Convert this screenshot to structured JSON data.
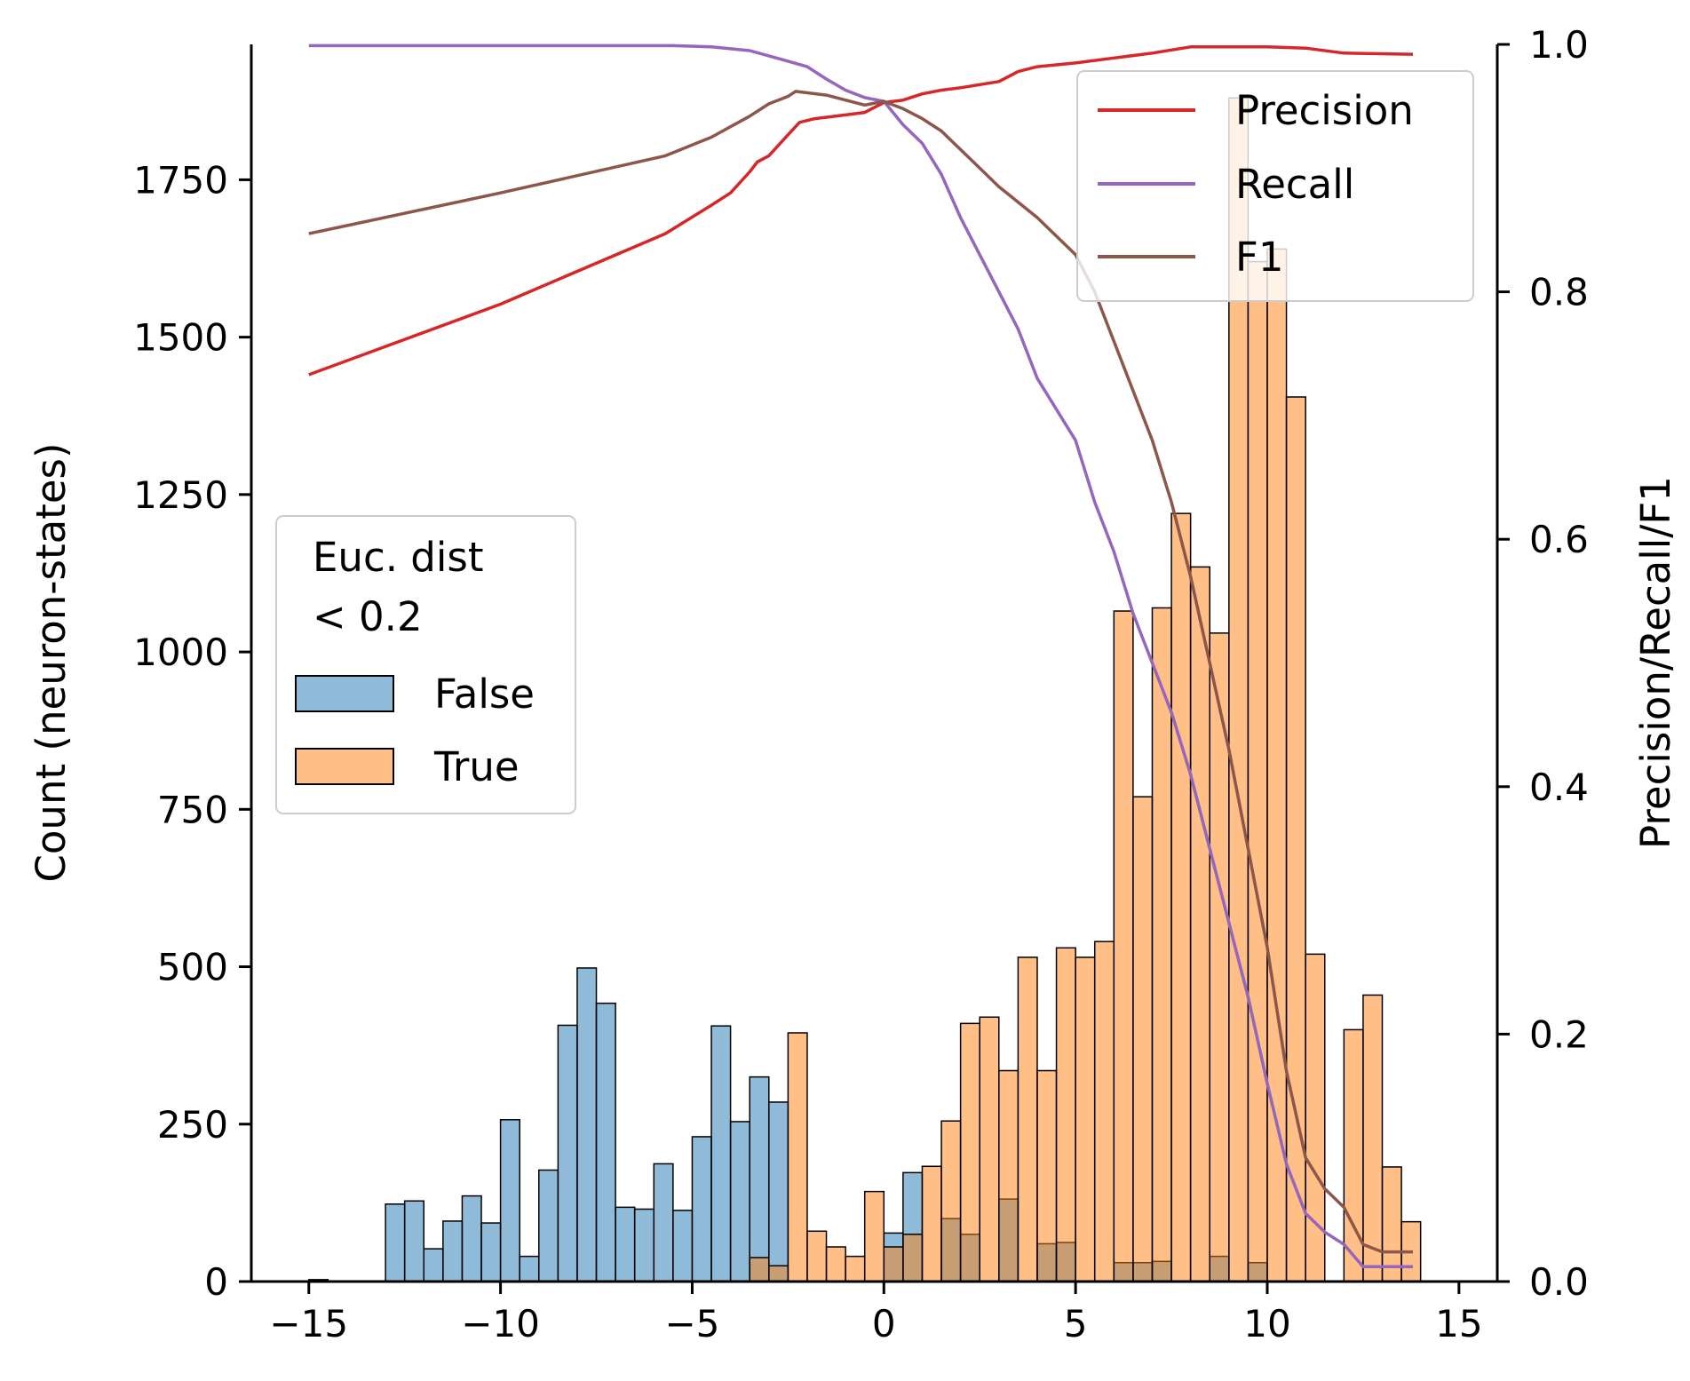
{
  "chart_data": {
    "type": "bar",
    "xlim": [
      -16.5,
      16
    ],
    "x_ticks": [
      {
        "value": -15,
        "label": "−15"
      },
      {
        "value": -10,
        "label": "−10"
      },
      {
        "value": -5,
        "label": "−5"
      },
      {
        "value": 0,
        "label": "0"
      },
      {
        "value": 5,
        "label": "5"
      },
      {
        "value": 10,
        "label": "10"
      },
      {
        "value": 15,
        "label": "15"
      }
    ],
    "left_axis": {
      "label": "Count (neuron-states)",
      "ylim": [
        0,
        1965
      ],
      "ticks": [
        {
          "value": 0,
          "label": "0"
        },
        {
          "value": 250,
          "label": "250"
        },
        {
          "value": 500,
          "label": "500"
        },
        {
          "value": 750,
          "label": "750"
        },
        {
          "value": 1000,
          "label": "1000"
        },
        {
          "value": 1250,
          "label": "1250"
        },
        {
          "value": 1500,
          "label": "1500"
        },
        {
          "value": 1750,
          "label": "1750"
        }
      ]
    },
    "right_axis": {
      "label": "Precision/Recall/F1",
      "ylim": [
        0,
        1.0
      ],
      "ticks": [
        {
          "value": 0,
          "label": "0.0"
        },
        {
          "value": 0.2,
          "label": "0.2"
        },
        {
          "value": 0.4,
          "label": "0.4"
        },
        {
          "value": 0.6,
          "label": "0.6"
        },
        {
          "value": 0.8,
          "label": "0.8"
        },
        {
          "value": 1.0,
          "label": "1.0"
        }
      ]
    },
    "histogram": {
      "bin_start": -15.0,
      "bin_width": 0.5,
      "legend_title_lines": [
        "Euc. dist",
        "< 0.2"
      ],
      "legend_location": "center-left",
      "series": [
        {
          "name": "False",
          "color": "#1f77b4",
          "values": [
            3,
            0,
            0,
            0,
            123,
            128,
            52,
            96,
            136,
            93,
            257,
            40,
            177,
            407,
            498,
            442,
            118,
            115,
            187,
            113,
            230,
            406,
            254,
            325,
            285,
            0,
            0,
            0,
            0,
            0,
            77,
            173,
            0,
            100,
            75,
            0,
            131,
            0,
            60,
            62,
            0,
            0,
            30,
            30,
            32,
            0,
            0,
            40,
            0,
            30,
            0,
            0,
            0,
            0,
            0,
            0,
            0,
            0
          ]
        },
        {
          "name": "True",
          "color": "#ff7f0e",
          "values": [
            0,
            0,
            0,
            0,
            0,
            0,
            0,
            0,
            0,
            0,
            0,
            0,
            0,
            0,
            0,
            0,
            0,
            0,
            0,
            0,
            0,
            0,
            0,
            38,
            25,
            395,
            80,
            55,
            40,
            143,
            55,
            75,
            183,
            255,
            410,
            420,
            335,
            515,
            335,
            530,
            515,
            540,
            1065,
            770,
            1070,
            1220,
            1135,
            1030,
            1880,
            1620,
            1640,
            1405,
            520,
            0,
            400,
            455,
            182,
            95
          ]
        }
      ]
    },
    "lines": {
      "legend_location": "top-right",
      "series": [
        {
          "name": "Precision",
          "color": "#d62728",
          "points": [
            [
              -15,
              0.733
            ],
            [
              -10,
              0.79
            ],
            [
              -5.7,
              0.847
            ],
            [
              -4.5,
              0.87
            ],
            [
              -4,
              0.88
            ],
            [
              -3.5,
              0.897
            ],
            [
              -3.3,
              0.905
            ],
            [
              -3,
              0.91
            ],
            [
              -2.5,
              0.927
            ],
            [
              -2.2,
              0.937
            ],
            [
              -1.8,
              0.94
            ],
            [
              -1.0,
              0.943
            ],
            [
              -0.5,
              0.945
            ],
            [
              0,
              0.953
            ],
            [
              0.5,
              0.955
            ],
            [
              1.0,
              0.96
            ],
            [
              1.5,
              0.963
            ],
            [
              2.0,
              0.965
            ],
            [
              3.0,
              0.97
            ],
            [
              3.5,
              0.978
            ],
            [
              4,
              0.982
            ],
            [
              5,
              0.985
            ],
            [
              6,
              0.989
            ],
            [
              7,
              0.993
            ],
            [
              8,
              0.998
            ],
            [
              9,
              0.998
            ],
            [
              10,
              0.998
            ],
            [
              11,
              0.997
            ],
            [
              12,
              0.993
            ],
            [
              13.8,
              0.992
            ]
          ]
        },
        {
          "name": "Recall",
          "color": "#9467bd",
          "points": [
            [
              -15,
              0.999
            ],
            [
              -5.5,
              0.999
            ],
            [
              -4.5,
              0.998
            ],
            [
              -3.5,
              0.995
            ],
            [
              -2.8,
              0.989
            ],
            [
              -2,
              0.982
            ],
            [
              -1.5,
              0.972
            ],
            [
              -1,
              0.963
            ],
            [
              -0.5,
              0.957
            ],
            [
              0,
              0.954
            ],
            [
              0.5,
              0.935
            ],
            [
              1,
              0.92
            ],
            [
              1.5,
              0.895
            ],
            [
              2,
              0.86
            ],
            [
              2.5,
              0.83
            ],
            [
              3,
              0.8
            ],
            [
              3.5,
              0.77
            ],
            [
              4,
              0.73
            ],
            [
              5,
              0.68
            ],
            [
              5.5,
              0.63
            ],
            [
              6,
              0.59
            ],
            [
              6.5,
              0.54
            ],
            [
              7,
              0.5
            ],
            [
              7.5,
              0.46
            ],
            [
              8,
              0.41
            ],
            [
              8.5,
              0.35
            ],
            [
              9,
              0.29
            ],
            [
              9.5,
              0.23
            ],
            [
              10,
              0.16
            ],
            [
              10.5,
              0.095
            ],
            [
              11,
              0.055
            ],
            [
              11.5,
              0.04
            ],
            [
              12,
              0.03
            ],
            [
              12.5,
              0.012
            ],
            [
              13.8,
              0.012
            ]
          ]
        },
        {
          "name": "F1",
          "color": "#8c564b",
          "points": [
            [
              -15,
              0.847
            ],
            [
              -10,
              0.88
            ],
            [
              -5.7,
              0.91
            ],
            [
              -4.5,
              0.925
            ],
            [
              -3.5,
              0.942
            ],
            [
              -3,
              0.952
            ],
            [
              -2.5,
              0.958
            ],
            [
              -2.3,
              0.962
            ],
            [
              -1.5,
              0.959
            ],
            [
              -1,
              0.955
            ],
            [
              -0.5,
              0.951
            ],
            [
              0,
              0.954
            ],
            [
              0.5,
              0.948
            ],
            [
              1,
              0.94
            ],
            [
              1.5,
              0.93
            ],
            [
              2,
              0.915
            ],
            [
              2.5,
              0.9
            ],
            [
              3,
              0.885
            ],
            [
              4,
              0.86
            ],
            [
              5,
              0.83
            ],
            [
              5.5,
              0.8
            ],
            [
              6,
              0.76
            ],
            [
              6.5,
              0.72
            ],
            [
              7,
              0.68
            ],
            [
              7.5,
              0.63
            ],
            [
              8,
              0.57
            ],
            [
              8.5,
              0.5
            ],
            [
              9,
              0.43
            ],
            [
              9.5,
              0.35
            ],
            [
              10,
              0.27
            ],
            [
              10.5,
              0.17
            ],
            [
              11,
              0.1
            ],
            [
              11.5,
              0.075
            ],
            [
              12,
              0.06
            ],
            [
              12.5,
              0.03
            ],
            [
              13,
              0.024
            ],
            [
              13.8,
              0.024
            ]
          ]
        }
      ]
    }
  }
}
